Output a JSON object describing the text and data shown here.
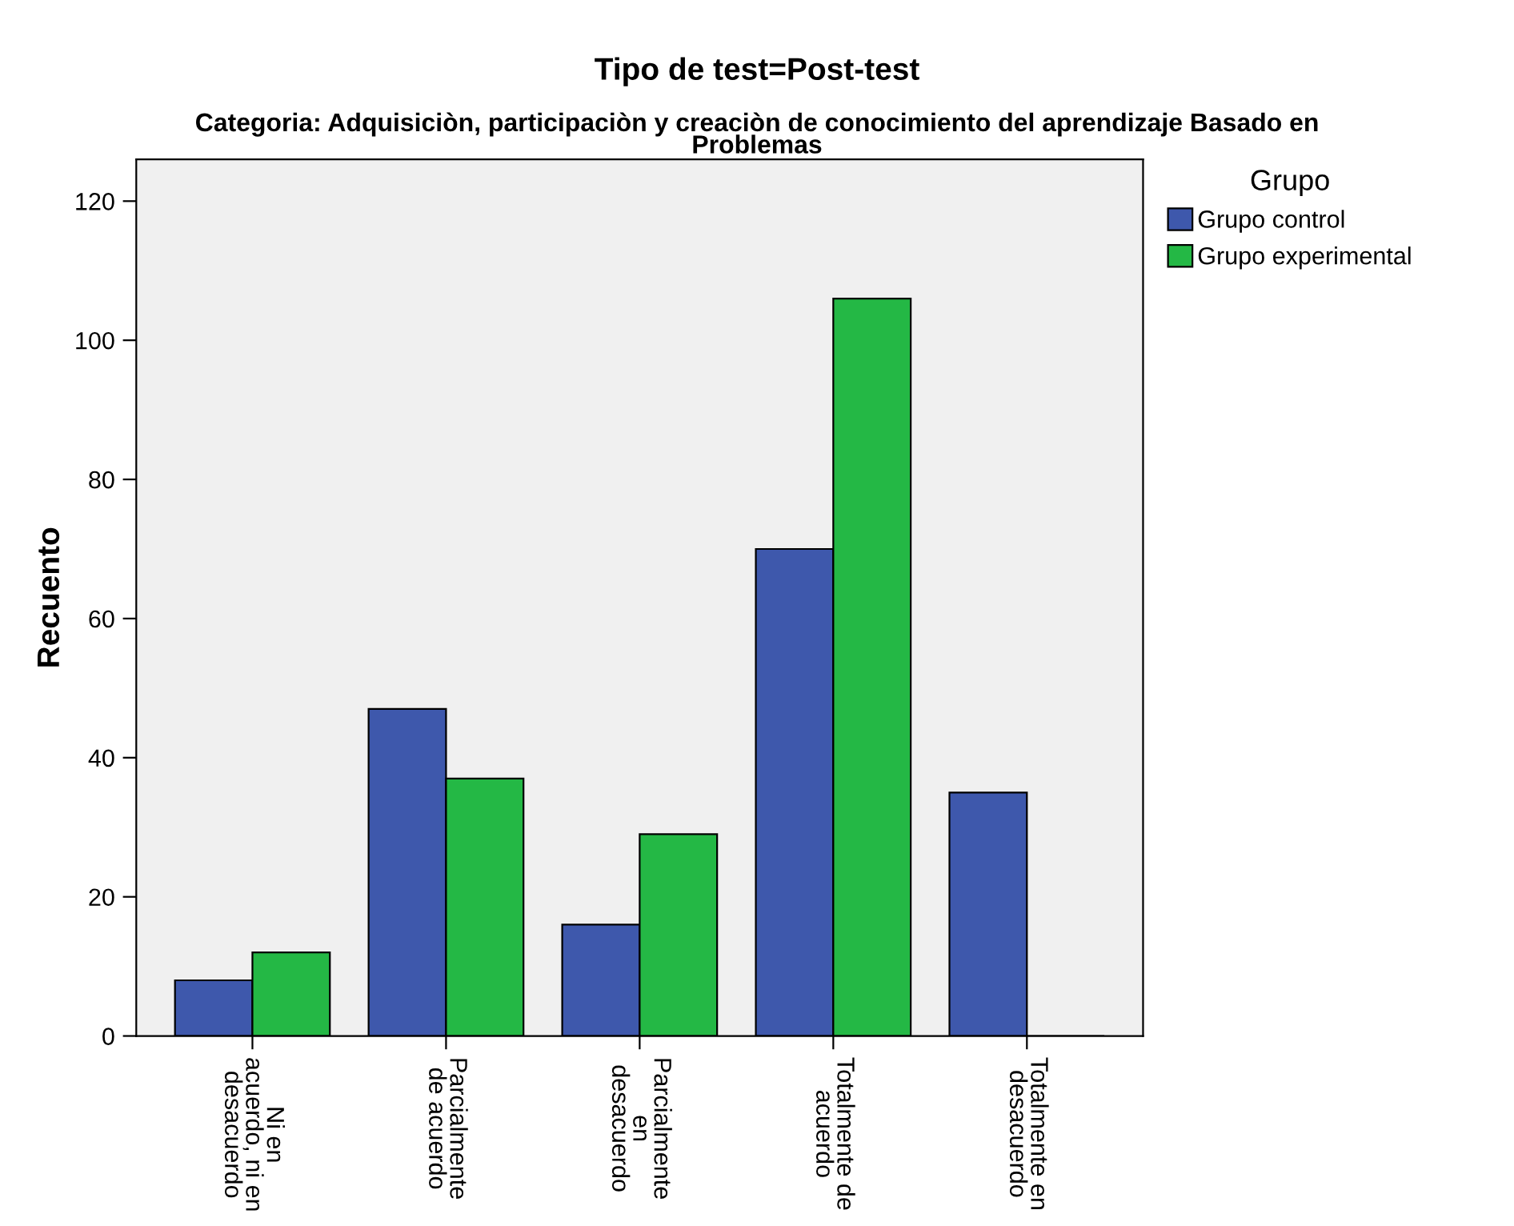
{
  "chart_data": {
    "type": "bar",
    "title": "Tipo de test=Post-test",
    "subtitle": "Categoria: Adquisiciòn, participaciòn y creaciòn de conocimiento del aprendizaje Basado en\nProblemas",
    "ylabel": "Recuento",
    "legend_title": "Grupo",
    "legend": "top right",
    "categories": [
      "Ni en\nacuerdo, ni en\ndesacuerdo",
      "Parcialmente\nde acuerdo",
      "Parcialmente\nen\ndesacuerdo",
      "Totalmente de\nacuerdo",
      "Totalmente en\ndesacuerdo"
    ],
    "series": [
      {
        "name": "Grupo control",
        "color": "#3e58ac",
        "values": [
          8,
          47,
          16,
          70,
          35
        ]
      },
      {
        "name": "Grupo experimental",
        "color": "#24b845",
        "values": [
          12,
          37,
          29,
          106,
          0
        ]
      }
    ],
    "ylim": [
      0,
      126
    ],
    "yticks": [
      0,
      20,
      40,
      60,
      80,
      100,
      120
    ],
    "grid": false
  }
}
